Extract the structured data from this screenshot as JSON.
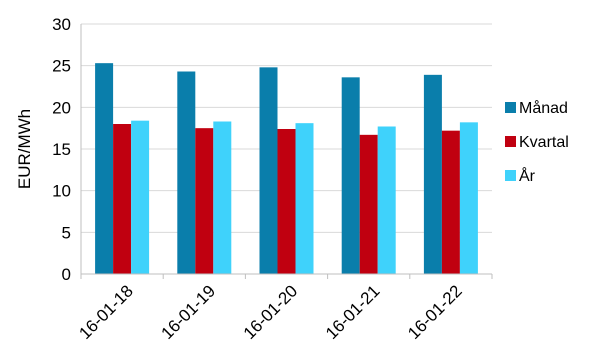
{
  "chart_data": {
    "type": "bar",
    "title": "",
    "xlabel": "",
    "ylabel": "EUR/MWh",
    "ylim": [
      0,
      30
    ],
    "yticks": [
      0,
      5,
      10,
      15,
      20,
      25,
      30
    ],
    "grid": "horizontal",
    "legend_position": "right",
    "categories": [
      "16-01-18",
      "16-01-19",
      "16-01-20",
      "16-01-21",
      "16-01-22"
    ],
    "series": [
      {
        "name": "Månad",
        "color": "#0a7eab",
        "values": [
          25.3,
          24.3,
          24.8,
          23.6,
          23.9
        ]
      },
      {
        "name": "Kvartal",
        "color": "#c00010",
        "values": [
          18.0,
          17.5,
          17.4,
          16.7,
          17.2
        ]
      },
      {
        "name": "År",
        "color": "#3fd2fb",
        "values": [
          18.4,
          18.3,
          18.1,
          17.7,
          18.2
        ]
      }
    ]
  }
}
